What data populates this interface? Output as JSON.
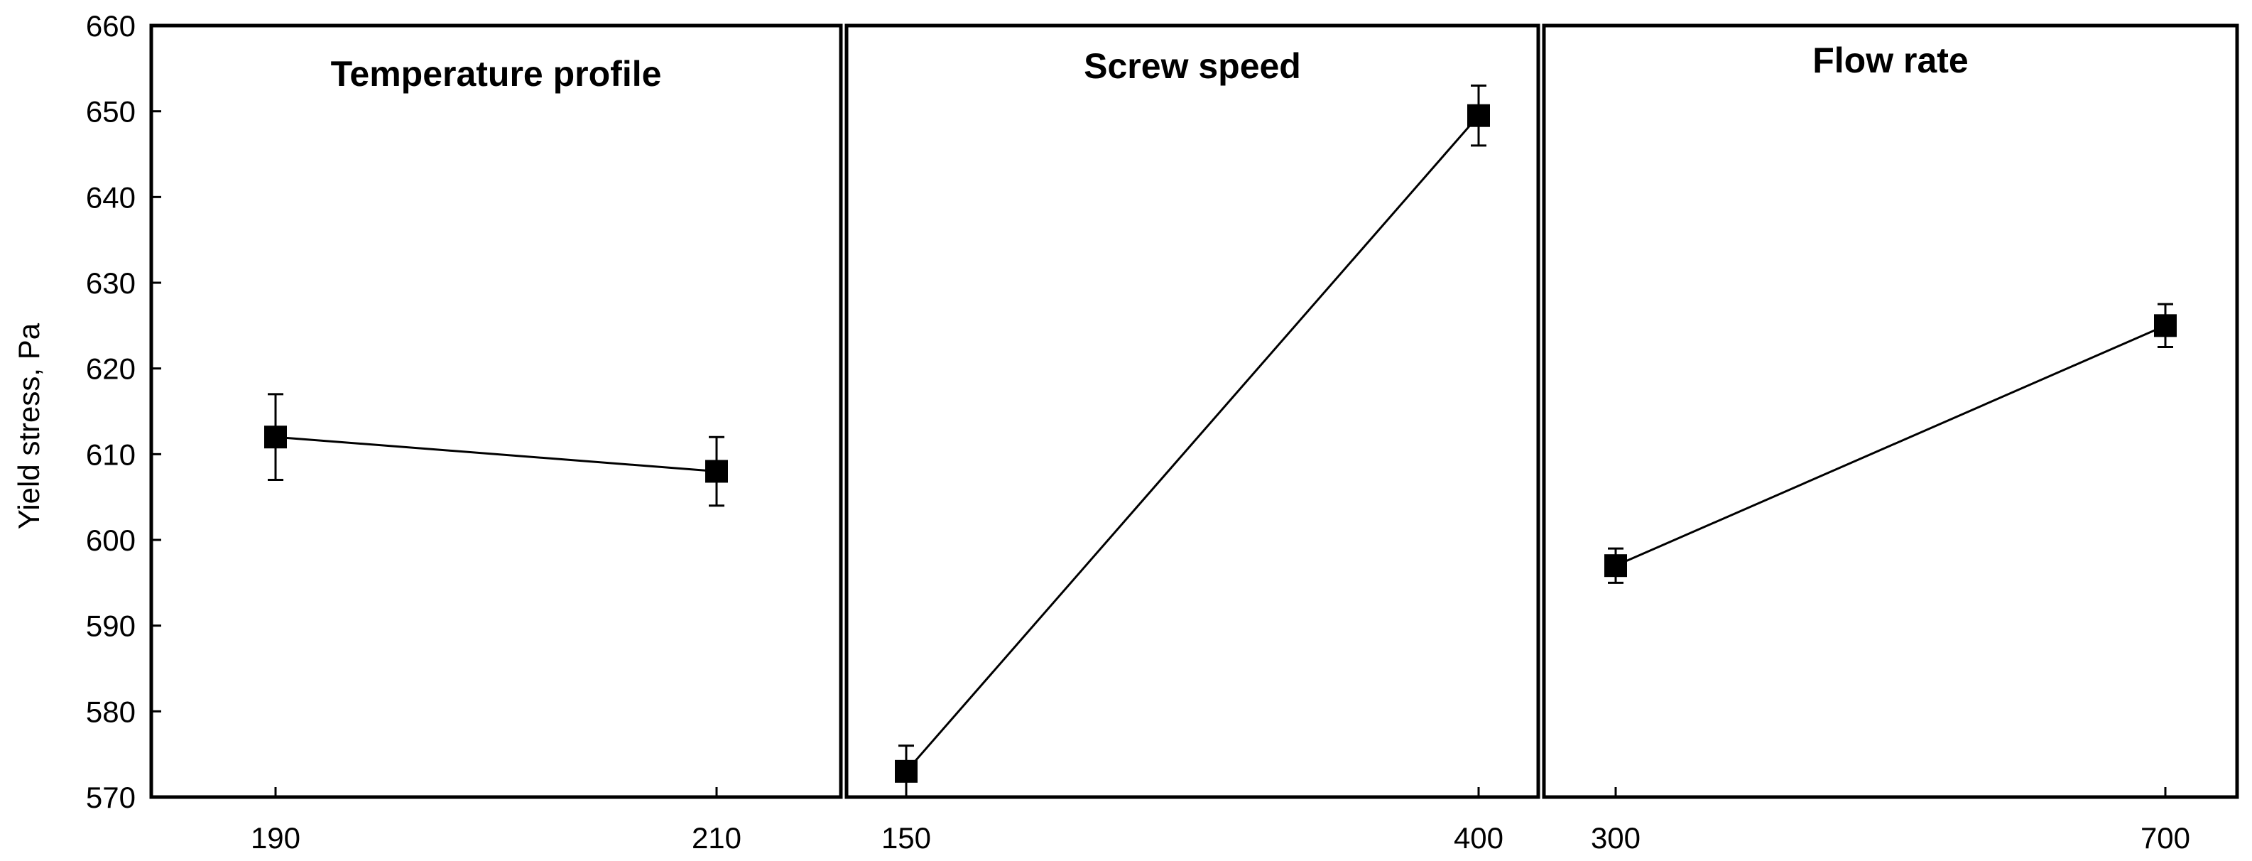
{
  "chart_data": {
    "type": "line",
    "ylabel": "Yield stress, Pa",
    "ylim": [
      570,
      660
    ],
    "yticks": [
      570,
      580,
      590,
      600,
      610,
      620,
      630,
      640,
      650,
      660
    ],
    "grid": false,
    "panels": [
      {
        "title": "Temperature profile",
        "x": [
          190,
          210
        ],
        "x_labels": [
          "190",
          "210"
        ],
        "y": [
          612,
          608
        ],
        "y_err": [
          5,
          4
        ]
      },
      {
        "title": "Screw speed",
        "x": [
          150,
          400
        ],
        "x_labels": [
          "150",
          "400"
        ],
        "y": [
          573,
          649.5
        ],
        "y_err": [
          3,
          3.5
        ]
      },
      {
        "title": "Flow rate",
        "x": [
          300,
          700
        ],
        "x_labels": [
          "300",
          "700"
        ],
        "y": [
          597,
          625
        ],
        "y_err": [
          2,
          2.5
        ]
      }
    ]
  }
}
